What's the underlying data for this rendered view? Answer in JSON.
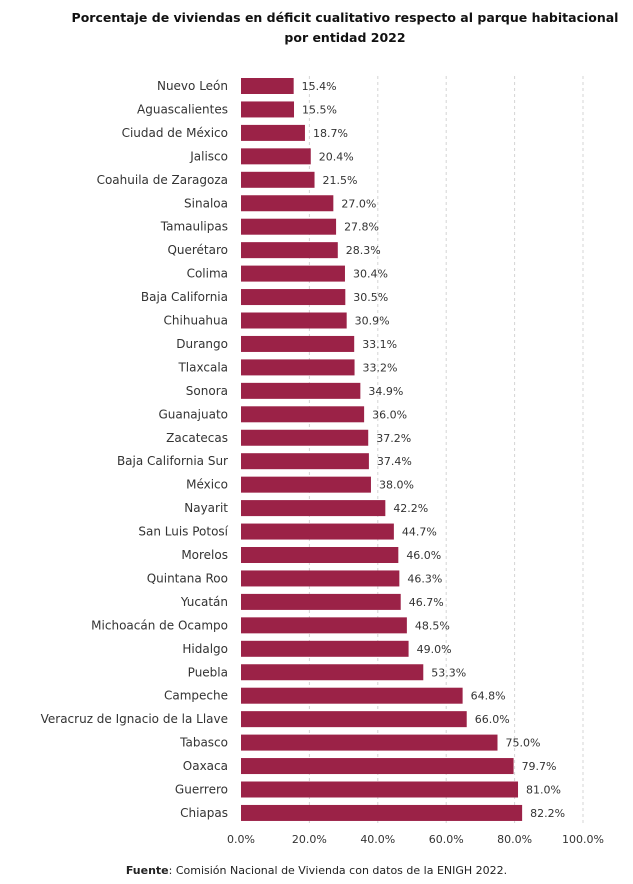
{
  "title": "Porcentaje de viviendas en déficit cualitativo respecto al parque habitacional por entidad 2022",
  "source": {
    "label": "Fuente",
    "text": ": Comisión Nacional de Vivienda con datos de la ENIGH 2022."
  },
  "colors": {
    "bar": "#9b2247",
    "grid": "#d4d4d4",
    "text": "#333333"
  },
  "chart_data": {
    "type": "bar",
    "orientation": "horizontal",
    "title": "Porcentaje de viviendas en déficit cualitativo respecto al parque habitacional por entidad 2022",
    "xlabel": "",
    "ylabel": "",
    "xlim": [
      0,
      100
    ],
    "grid": "vertical dashed",
    "legend": "none",
    "x_ticks": [
      "0.0%",
      "20.0%",
      "40.0%",
      "60.0%",
      "80.0%",
      "100.0%"
    ],
    "categories": [
      "Nuevo León",
      "Aguascalientes",
      "Ciudad de México",
      "Jalisco",
      "Coahuila de Zaragoza",
      "Sinaloa",
      "Tamaulipas",
      "Querétaro",
      "Colima",
      "Baja California",
      "Chihuahua",
      "Durango",
      "Tlaxcala",
      "Sonora",
      "Guanajuato",
      "Zacatecas",
      "Baja California Sur",
      "México",
      "Nayarit",
      "San Luis Potosí",
      "Morelos",
      "Quintana Roo",
      "Yucatán",
      "Michoacán de Ocampo",
      "Hidalgo",
      "Puebla",
      "Campeche",
      "Veracruz de Ignacio de la Llave",
      "Tabasco",
      "Oaxaca",
      "Guerrero",
      "Chiapas"
    ],
    "values": [
      15.4,
      15.5,
      18.7,
      20.4,
      21.5,
      27.0,
      27.8,
      28.3,
      30.4,
      30.5,
      30.9,
      33.1,
      33.2,
      34.9,
      36.0,
      37.2,
      37.4,
      38.0,
      42.2,
      44.7,
      46.0,
      46.3,
      46.7,
      48.5,
      49.0,
      53.3,
      64.8,
      66.0,
      75.0,
      79.7,
      81.0,
      82.2
    ],
    "value_labels": [
      "15.4%",
      "15.5%",
      "18.7%",
      "20.4%",
      "21.5%",
      "27.0%",
      "27.8%",
      "28.3%",
      "30.4%",
      "30.5%",
      "30.9%",
      "33.1%",
      "33.2%",
      "34.9%",
      "36.0%",
      "37.2%",
      "37.4%",
      "38.0%",
      "42.2%",
      "44.7%",
      "46.0%",
      "46.3%",
      "46.7%",
      "48.5%",
      "49.0%",
      "53.3%",
      "64.8%",
      "66.0%",
      "75.0%",
      "79.7%",
      "81.0%",
      "82.2%"
    ]
  }
}
